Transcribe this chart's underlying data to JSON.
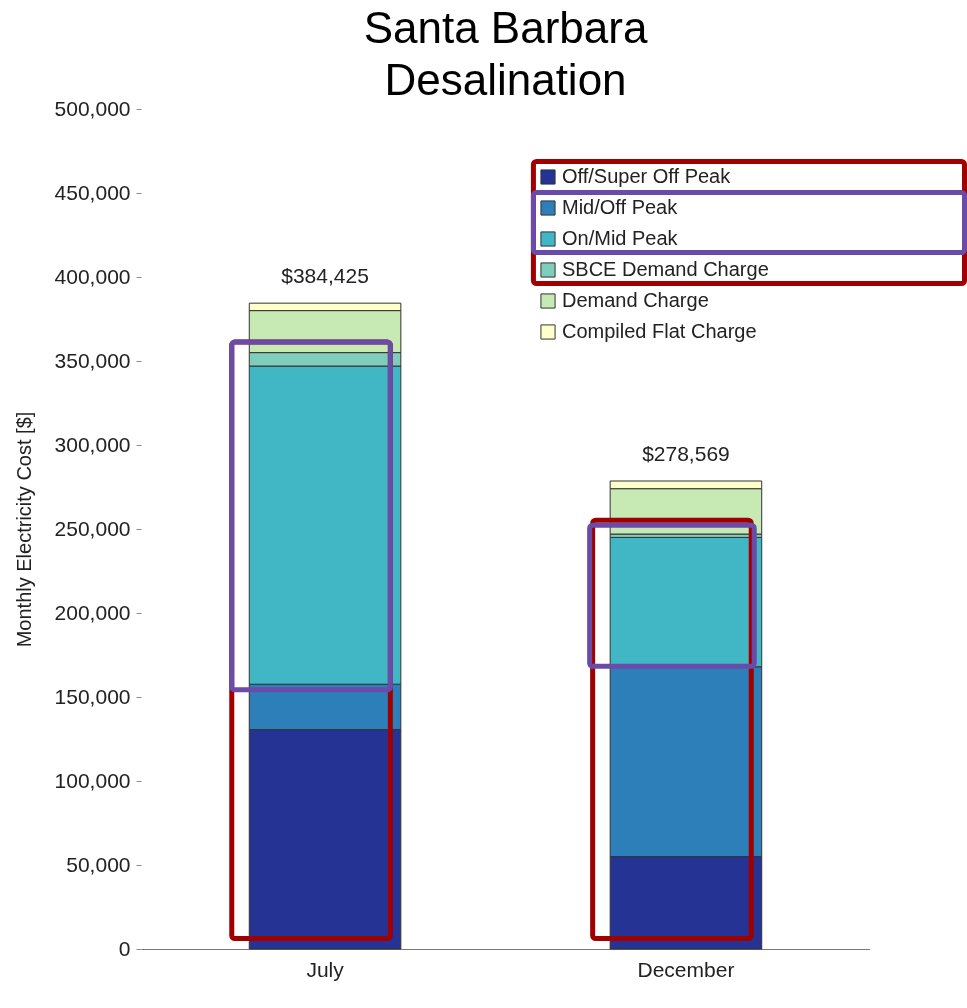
{
  "chart_data": {
    "type": "bar",
    "title": "Santa Barbara\nDesalination",
    "ylabel": "Monthly Electricity Cost [$]",
    "categories": [
      "July",
      "December"
    ],
    "stacked": true,
    "series": [
      {
        "name": "Off/Super Off Peak",
        "color": "#253494",
        "values": [
          130600,
          55000
        ]
      },
      {
        "name": "Mid/Off Peak",
        "color": "#2c7fb8",
        "values": [
          27000,
          113000
        ]
      },
      {
        "name": "On/Mid Peak",
        "color": "#41b6c4",
        "values": [
          189400,
          77000
        ]
      },
      {
        "name": "SBCE Demand Charge",
        "color": "#7fcdbb",
        "values": [
          8000,
          2000
        ]
      },
      {
        "name": "Demand Charge",
        "color": "#c7e9b4",
        "values": [
          25000,
          27000
        ]
      },
      {
        "name": "Compiled Flat Charge",
        "color": "#ffffcc",
        "values": [
          4425,
          4569
        ]
      }
    ],
    "totals": [
      "$384,425",
      "$278,569"
    ],
    "ylim": [
      0,
      500000
    ],
    "yticks": [
      0,
      {
        "value": 50000,
        "label": "50,000"
      },
      {
        "value": 100000,
        "label": "100,000"
      },
      {
        "value": 150000,
        "label": "150,000"
      },
      {
        "value": 200000,
        "label": "200,000"
      },
      {
        "value": 250000,
        "label": "250,000"
      },
      {
        "value": 300000,
        "label": "300,000"
      },
      {
        "value": 350000,
        "label": "350,000"
      },
      {
        "value": 400000,
        "label": "400,000"
      },
      {
        "value": 450000,
        "label": "450,000"
      },
      {
        "value": 500000,
        "label": "500,000"
      }
    ],
    "grid": false,
    "legend": "top right"
  }
}
